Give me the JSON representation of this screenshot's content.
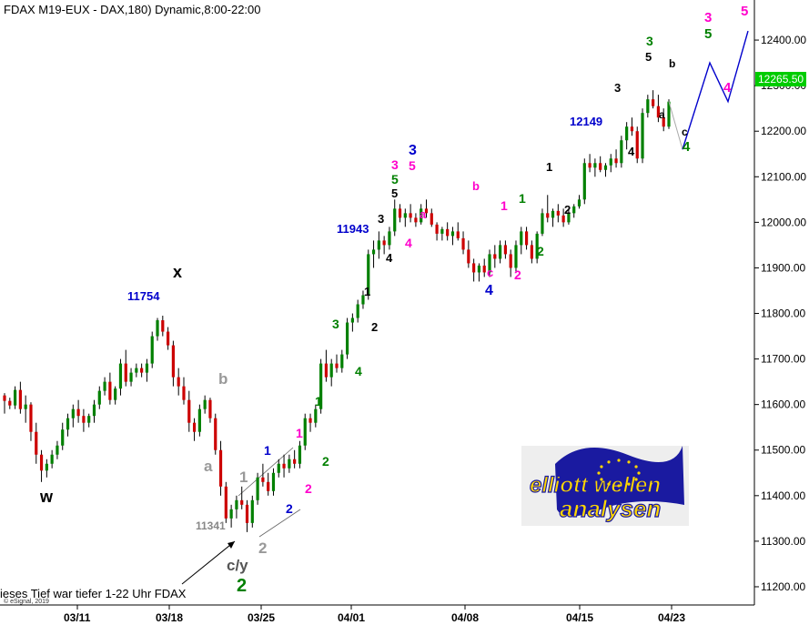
{
  "chart_data": {
    "type": "candlestick",
    "title": "FDAX M19-EUX - DAX,180) Dynamic,8:00-22:00",
    "copyright": "© eSignal, 2019",
    "ylim": [
      11160,
      12480
    ],
    "y_ticks": [
      "11200.00",
      "11300.00",
      "11400.00",
      "11500.00",
      "11600.00",
      "11700.00",
      "11800.00",
      "11900.00",
      "12000.00",
      "12100.00",
      "12200.00",
      "12300.00",
      "12400.00"
    ],
    "x_ticks": [
      "03/11",
      "03/18",
      "03/25",
      "04/01",
      "04/08",
      "04/15",
      "04/23"
    ],
    "last_price": "12265.50",
    "colors": {
      "up": "#008000",
      "down": "#cc0000",
      "wick": "#000000",
      "price_box": "#00cc00",
      "projection": "#0000cc",
      "gray_line": "#aaaaaa"
    },
    "candles": [
      [
        11620,
        11625,
        11580,
        11608
      ],
      [
        11608,
        11615,
        11590,
        11598
      ],
      [
        11598,
        11640,
        11590,
        11632
      ],
      [
        11632,
        11650,
        11580,
        11590
      ],
      [
        11590,
        11620,
        11560,
        11600
      ],
      [
        11600,
        11605,
        11520,
        11540
      ],
      [
        11540,
        11560,
        11470,
        11490
      ],
      [
        11490,
        11500,
        11430,
        11455
      ],
      [
        11455,
        11480,
        11440,
        11470
      ],
      [
        11470,
        11500,
        11460,
        11490
      ],
      [
        11490,
        11520,
        11480,
        11510
      ],
      [
        11510,
        11560,
        11500,
        11545
      ],
      [
        11545,
        11580,
        11530,
        11570
      ],
      [
        11570,
        11600,
        11550,
        11590
      ],
      [
        11590,
        11610,
        11560,
        11575
      ],
      [
        11575,
        11590,
        11540,
        11560
      ],
      [
        11560,
        11580,
        11550,
        11575
      ],
      [
        11575,
        11610,
        11560,
        11600
      ],
      [
        11600,
        11640,
        11590,
        11630
      ],
      [
        11630,
        11660,
        11620,
        11650
      ],
      [
        11650,
        11670,
        11600,
        11610
      ],
      [
        11610,
        11640,
        11600,
        11635
      ],
      [
        11635,
        11700,
        11620,
        11690
      ],
      [
        11690,
        11720,
        11640,
        11650
      ],
      [
        11650,
        11680,
        11640,
        11670
      ],
      [
        11670,
        11690,
        11660,
        11680
      ],
      [
        11680,
        11690,
        11660,
        11670
      ],
      [
        11670,
        11700,
        11650,
        11690
      ],
      [
        11690,
        11760,
        11680,
        11750
      ],
      [
        11750,
        11790,
        11740,
        11785
      ],
      [
        11785,
        11795,
        11750,
        11760
      ],
      [
        11760,
        11770,
        11720,
        11730
      ],
      [
        11730,
        11740,
        11640,
        11660
      ],
      [
        11660,
        11680,
        11620,
        11640
      ],
      [
        11640,
        11660,
        11600,
        11610
      ],
      [
        11610,
        11630,
        11540,
        11560
      ],
      [
        11560,
        11570,
        11520,
        11540
      ],
      [
        11540,
        11600,
        11530,
        11590
      ],
      [
        11590,
        11620,
        11580,
        11610
      ],
      [
        11610,
        11615,
        11560,
        11570
      ],
      [
        11570,
        11580,
        11490,
        11500
      ],
      [
        11500,
        11520,
        11400,
        11420
      ],
      [
        11420,
        11430,
        11340,
        11350
      ],
      [
        11350,
        11380,
        11330,
        11370
      ],
      [
        11370,
        11400,
        11350,
        11390
      ],
      [
        11390,
        11420,
        11370,
        11380
      ],
      [
        11380,
        11390,
        11320,
        11340
      ],
      [
        11340,
        11400,
        11330,
        11390
      ],
      [
        11390,
        11450,
        11380,
        11440
      ],
      [
        11440,
        11470,
        11420,
        11430
      ],
      [
        11430,
        11450,
        11400,
        11410
      ],
      [
        11410,
        11460,
        11400,
        11450
      ],
      [
        11450,
        11480,
        11440,
        11470
      ],
      [
        11470,
        11490,
        11440,
        11460
      ],
      [
        11460,
        11490,
        11450,
        11480
      ],
      [
        11480,
        11500,
        11460,
        11470
      ],
      [
        11470,
        11520,
        11460,
        11510
      ],
      [
        11510,
        11580,
        11500,
        11570
      ],
      [
        11570,
        11580,
        11540,
        11560
      ],
      [
        11560,
        11600,
        11550,
        11590
      ],
      [
        11590,
        11700,
        11580,
        11690
      ],
      [
        11690,
        11720,
        11650,
        11660
      ],
      [
        11660,
        11700,
        11640,
        11690
      ],
      [
        11690,
        11710,
        11670,
        11680
      ],
      [
        11680,
        11720,
        11670,
        11710
      ],
      [
        11710,
        11790,
        11700,
        11780
      ],
      [
        11780,
        11800,
        11760,
        11790
      ],
      [
        11790,
        11830,
        11780,
        11820
      ],
      [
        11820,
        11850,
        11810,
        11840
      ],
      [
        11840,
        11940,
        11830,
        11930
      ],
      [
        11930,
        11960,
        11900,
        11940
      ],
      [
        11940,
        11980,
        11920,
        11960
      ],
      [
        11960,
        11970,
        11930,
        11950
      ],
      [
        11950,
        11990,
        11940,
        11980
      ],
      [
        11980,
        12050,
        11970,
        12030
      ],
      [
        12030,
        12040,
        12000,
        12010
      ],
      [
        12010,
        12030,
        11990,
        12020
      ],
      [
        12020,
        12040,
        12000,
        12010
      ],
      [
        12010,
        12020,
        11990,
        12000
      ],
      [
        12000,
        12040,
        11995,
        12030
      ],
      [
        12030,
        12050,
        12010,
        12020
      ],
      [
        12020,
        12030,
        11990,
        11995
      ],
      [
        11995,
        12000,
        11960,
        11975
      ],
      [
        11975,
        11990,
        11960,
        11985
      ],
      [
        11985,
        12000,
        11960,
        11970
      ],
      [
        11970,
        11990,
        11950,
        11980
      ],
      [
        11980,
        12000,
        11960,
        11965
      ],
      [
        11965,
        11980,
        11930,
        11940
      ],
      [
        11940,
        11960,
        11900,
        11910
      ],
      [
        11910,
        11920,
        11870,
        11890
      ],
      [
        11890,
        11910,
        11870,
        11905
      ],
      [
        11905,
        11920,
        11880,
        11890
      ],
      [
        11890,
        11940,
        11880,
        11930
      ],
      [
        11930,
        11950,
        11900,
        11920
      ],
      [
        11920,
        11960,
        11910,
        11950
      ],
      [
        11950,
        11960,
        11920,
        11930
      ],
      [
        11930,
        11940,
        11880,
        11900
      ],
      [
        11900,
        11960,
        11890,
        11950
      ],
      [
        11950,
        11990,
        11930,
        11980
      ],
      [
        11980,
        11990,
        11940,
        11950
      ],
      [
        11950,
        11960,
        11910,
        11920
      ],
      [
        11920,
        11980,
        11910,
        11975
      ],
      [
        11975,
        12030,
        11970,
        12020
      ],
      [
        12020,
        12060,
        12000,
        12010
      ],
      [
        12010,
        12030,
        11990,
        12025
      ],
      [
        12025,
        12040,
        12000,
        12015
      ],
      [
        12015,
        12030,
        11990,
        12000
      ],
      [
        12000,
        12030,
        11995,
        12020
      ],
      [
        12020,
        12040,
        12010,
        12035
      ],
      [
        12035,
        12060,
        12030,
        12050
      ],
      [
        12050,
        12140,
        12040,
        12130
      ],
      [
        12130,
        12150,
        12110,
        12120
      ],
      [
        12120,
        12140,
        12100,
        12130
      ],
      [
        12130,
        12145,
        12110,
        12115
      ],
      [
        12115,
        12130,
        12100,
        12125
      ],
      [
        12125,
        12150,
        12110,
        12140
      ],
      [
        12140,
        12160,
        12120,
        12130
      ],
      [
        12130,
        12190,
        12120,
        12180
      ],
      [
        12180,
        12220,
        12160,
        12210
      ],
      [
        12210,
        12230,
        12190,
        12200
      ],
      [
        12200,
        12210,
        12130,
        12140
      ],
      [
        12140,
        12250,
        12130,
        12240
      ],
      [
        12240,
        12280,
        12230,
        12270
      ],
      [
        12270,
        12290,
        12250,
        12255
      ],
      [
        12255,
        12280,
        12220,
        12230
      ],
      [
        12230,
        12250,
        12200,
        12210
      ],
      [
        12210,
        12270,
        12205,
        12265
      ]
    ],
    "projection": [
      [
        12260,
        12160
      ],
      [
        12350,
        12160
      ],
      [
        12420,
        12350
      ]
    ],
    "price_notes": [
      "11754",
      "11943",
      "12149",
      "11341"
    ],
    "wave_labels": [
      "w",
      "x",
      "a",
      "b",
      "c/y",
      "2",
      "1",
      "2",
      "1",
      "2",
      "1",
      "2",
      "3",
      "4",
      "1",
      "2",
      "3",
      "4",
      "3",
      "5",
      "3",
      "5",
      "4",
      "a",
      "b",
      "c",
      "4",
      "1",
      "2",
      "1",
      "2",
      "3",
      "4",
      "5",
      "3",
      "a",
      "b",
      "c",
      "4",
      "3",
      "5",
      "4",
      "5"
    ],
    "footnote": "ieses Tief war tiefer 1-22 Uhr FDAX",
    "logo": {
      "line1": "elliott wellen",
      "line2": "analysen",
      "colors": {
        "flag": "#1a1aa0",
        "star": "#ffd700",
        "text_fill": "#ffd700",
        "text_outline": "#1a1aa0",
        "card": "#eeeeee"
      }
    }
  }
}
